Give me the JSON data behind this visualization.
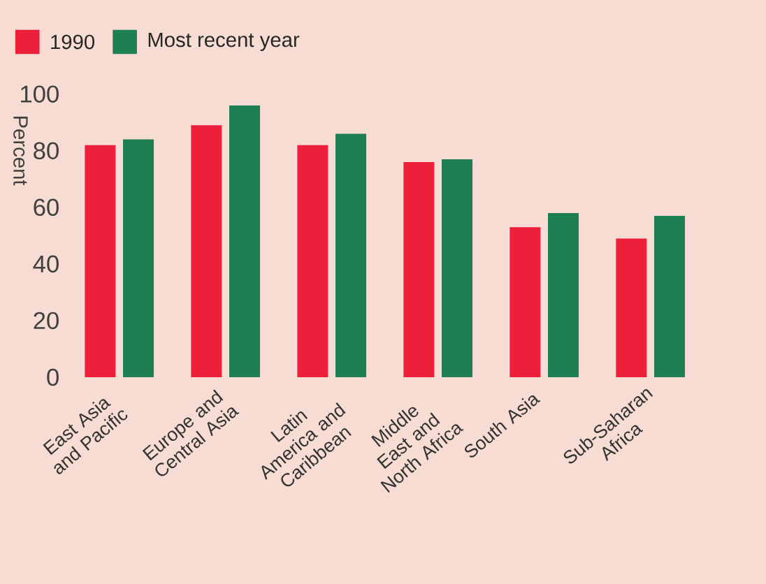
{
  "chart_data": {
    "type": "bar",
    "ylabel": "Percent",
    "categories": [
      "East Asia and Pacific",
      "Europe and Central Asia",
      "Latin America and Caribbean",
      "Middle East and North Africa",
      "South Asia",
      "Sub-Saharan Africa"
    ],
    "series": [
      {
        "name": "1990",
        "color": "#ee1f3b",
        "values": [
          82,
          89,
          82,
          76,
          53,
          49
        ]
      },
      {
        "name": "Most recent year",
        "color": "#1d8052",
        "values": [
          84,
          96,
          86,
          77,
          58,
          57
        ]
      }
    ],
    "ylim": [
      0,
      100
    ],
    "yticks": [
      0,
      20,
      40,
      60,
      80,
      100
    ],
    "grid": false,
    "legend": "top left"
  }
}
